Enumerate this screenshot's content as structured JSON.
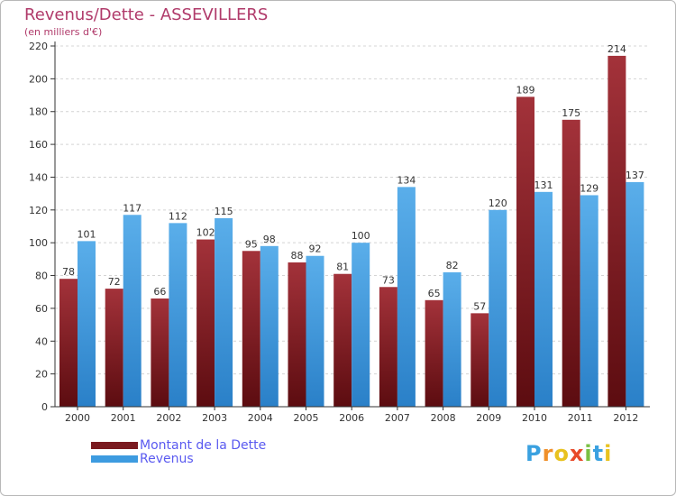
{
  "chart_data": {
    "type": "bar",
    "title": "Revenus/Dette - ASSEVILLERS",
    "subtitle": "(en milliers d'€)",
    "categories": [
      "2000",
      "2001",
      "2002",
      "2003",
      "2004",
      "2005",
      "2006",
      "2007",
      "2008",
      "2009",
      "2010",
      "2011",
      "2012"
    ],
    "series": [
      {
        "name": "Montant de la Dette",
        "values": [
          78,
          72,
          66,
          102,
          95,
          88,
          81,
          73,
          65,
          57,
          189,
          175,
          214
        ],
        "color": "#7a1a1f"
      },
      {
        "name": "Revenus",
        "values": [
          101,
          117,
          112,
          115,
          98,
          92,
          100,
          134,
          82,
          120,
          131,
          129,
          137
        ],
        "color": "#3d9be0"
      }
    ],
    "ylim": [
      0,
      220
    ],
    "yticks": [
      0,
      20,
      40,
      60,
      80,
      100,
      120,
      140,
      160,
      180,
      200,
      220
    ],
    "grid": true,
    "legend_position": "bottom-left"
  },
  "brand": {
    "letters": [
      "P",
      "r",
      "o",
      "x",
      "i",
      "t",
      "i"
    ],
    "colors": [
      "#3aa1e0",
      "#f0902a",
      "#e8c21f",
      "#e84a2a",
      "#7ac043",
      "#3aa1e0",
      "#e8c21f"
    ]
  }
}
